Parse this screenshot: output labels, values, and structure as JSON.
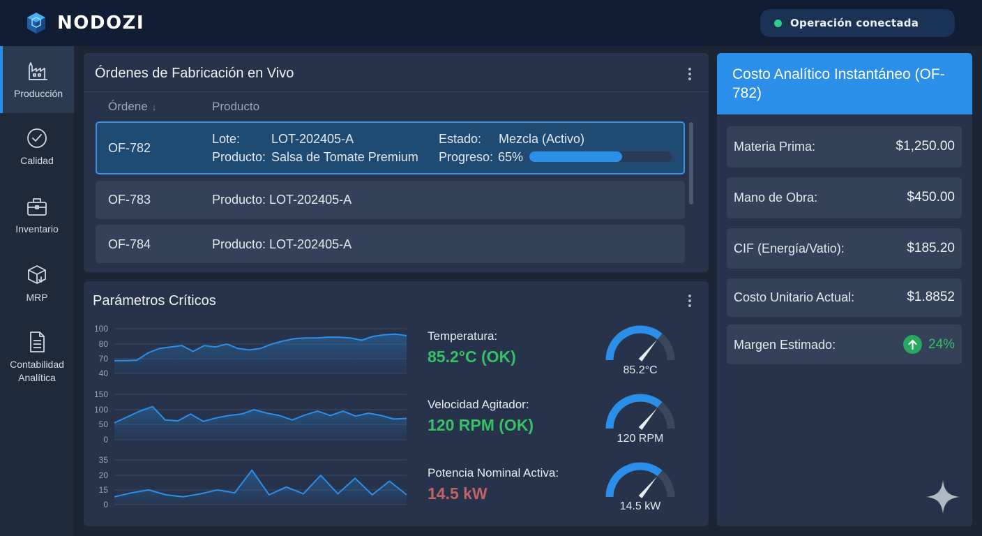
{
  "app": {
    "name": "NODOZI"
  },
  "status": {
    "text": "Operación conectada",
    "color": "#2ecc8a"
  },
  "sidebar": {
    "items": [
      {
        "label": "Producción",
        "icon": "factory-icon",
        "active": true
      },
      {
        "label": "Calidad",
        "icon": "check-circle-icon"
      },
      {
        "label": "Inventario",
        "icon": "briefcase-icon"
      },
      {
        "label": "MRP",
        "icon": "box-icon"
      },
      {
        "label_line1": "Contabilidad",
        "label_line2": "Analítica",
        "icon": "document-icon"
      }
    ]
  },
  "orders": {
    "title": "Órdenes de Fabricación en Vivo",
    "columns": {
      "order": "Órdene",
      "sort_indicator": "↓",
      "product": "Producto"
    },
    "selected": {
      "id": "OF-782",
      "lote_label": "Lote:",
      "lote": "LOT-202405-A",
      "estado_label": "Estado:",
      "estado": "Mezcla (Activo)",
      "producto_label": "Producto:",
      "producto": "Salsa de Tomate Premium",
      "progreso_label": "Progreso:",
      "progreso_text": "65%",
      "progress": 0.65
    },
    "rows": [
      {
        "id": "OF-783",
        "product": "Producto: LOT-202405-A"
      },
      {
        "id": "OF-784",
        "product": "Producto: LOT-202405-A"
      }
    ]
  },
  "params": {
    "title": "Parámetros Críticos",
    "charts": [
      {
        "ticks": [
          "100",
          "80",
          "70",
          "40"
        ],
        "tick_values": [
          100,
          80,
          70,
          40
        ]
      },
      {
        "ticks": [
          "150",
          "100",
          "50",
          "0"
        ],
        "tick_values": [
          150,
          100,
          50,
          0
        ]
      },
      {
        "ticks": [
          "35",
          "20",
          "15",
          "0"
        ],
        "tick_values": [
          35,
          20,
          15,
          0
        ]
      }
    ],
    "metrics": [
      {
        "label": "Temperatura:",
        "value": "85.2°C (OK)",
        "color": "#37c06a",
        "gauge": "85.2°C",
        "level": 0.72
      },
      {
        "label": "Velocidad Agitador:",
        "value": "120 RPM (OK)",
        "color": "#37c06a",
        "gauge": "120 RPM",
        "level": 0.72
      },
      {
        "label": "Potencia Nominal Activa:",
        "value": "14.5 kW",
        "color": "#c0646a",
        "gauge": "14.5 kW",
        "level": 0.72
      }
    ]
  },
  "chart_data": [
    {
      "type": "area",
      "yticks": [
        100,
        80,
        70,
        40
      ],
      "ylim": [
        40,
        100
      ],
      "series": [
        {
          "values": [
            66,
            66,
            67,
            74,
            77,
            78,
            79,
            75,
            79,
            78,
            80,
            77,
            76,
            77,
            80,
            84,
            87,
            88,
            88,
            89,
            89,
            88,
            85,
            90,
            92,
            93,
            91
          ]
        }
      ]
    },
    {
      "type": "area",
      "yticks": [
        150,
        100,
        50,
        0
      ],
      "ylim": [
        0,
        150
      ],
      "series": [
        {
          "values": [
            55,
            75,
            95,
            110,
            65,
            62,
            85,
            60,
            72,
            80,
            85,
            100,
            88,
            80,
            65,
            82,
            95,
            80,
            95,
            78,
            88,
            80,
            68,
            70
          ]
        }
      ]
    },
    {
      "type": "area",
      "yticks": [
        35,
        20,
        15,
        0
      ],
      "ylim": [
        0,
        35
      ],
      "series": [
        {
          "values": [
            8,
            12,
            15,
            10,
            8,
            11,
            15,
            12,
            25,
            10,
            16,
            11,
            20,
            11,
            19,
            10,
            18,
            10
          ]
        }
      ]
    }
  ],
  "cost": {
    "title": "Costo Analítico Instantáneo (OF-782)",
    "rows": [
      {
        "label": "Materia Prima:",
        "value": "$1,250.00"
      },
      {
        "label": "Mano de Obra:",
        "value": "$450.00"
      },
      {
        "label": "CIF (Energía/Vatio):",
        "value": "$185.20"
      },
      {
        "label": "Costo Unitario Actual:",
        "value": "$1.8852"
      }
    ],
    "margin": {
      "label": "Margen Estimado:",
      "value": "24%",
      "icon": "arrow-up-icon",
      "color": "#37c06a"
    }
  },
  "colors": {
    "accent": "#2b8ee8",
    "header_bg": "#111d33",
    "card_bg": "#26334a"
  }
}
